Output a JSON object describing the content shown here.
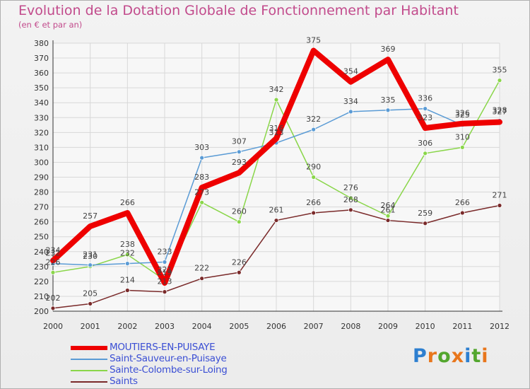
{
  "title": "Evolution de la Dotation Globale de Fonctionnement par Habitant",
  "subtitle": "(en € et par an)",
  "logo": {
    "text": "Proxiti",
    "letter_colors": [
      "#2d7fd0",
      "#e8761c",
      "#53a62e",
      "#e8761c",
      "#2d7fd0",
      "#53a62e",
      "#e8761c"
    ]
  },
  "chart_data": {
    "type": "line",
    "x": [
      "2000",
      "2001",
      "2002",
      "2003",
      "2004",
      "2005",
      "2006",
      "2007",
      "2008",
      "2009",
      "2010",
      "2011",
      "2012"
    ],
    "ylim": [
      200,
      380
    ],
    "yticks": [
      "200",
      "210",
      "220",
      "230",
      "240",
      "250",
      "260",
      "270",
      "280",
      "290",
      "300",
      "310",
      "320",
      "330",
      "340",
      "350",
      "360",
      "370",
      "380"
    ],
    "grid": true,
    "legend_position": "bottom-left",
    "series": [
      {
        "name": "Saints",
        "color": "#7a2a2a",
        "values": [
          202,
          205,
          214,
          213,
          222,
          226,
          261,
          266,
          268,
          261,
          259,
          266,
          271
        ],
        "labels": [
          "202",
          "205",
          "214",
          "213",
          "222",
          "226",
          "261",
          "266",
          "268",
          "261",
          "259",
          "266",
          "271"
        ]
      },
      {
        "name": "Sainte-Colombe-sur-Loing",
        "color": "#8ad64a",
        "values": [
          226,
          230,
          238,
          221,
          273,
          260,
          342,
          290,
          276,
          264,
          306,
          310,
          355
        ],
        "labels": [
          "226",
          "230",
          "238",
          "221",
          "273",
          "260",
          "342",
          "290",
          "276",
          "264",
          "306",
          "310",
          "355"
        ]
      },
      {
        "name": "Saint-Sauveur-en-Puisaye",
        "color": "#5a9bd5",
        "values": [
          232,
          231,
          232,
          233,
          303,
          307,
          313,
          322,
          334,
          335,
          336,
          325,
          328
        ],
        "labels": [
          "232",
          "231",
          "232",
          "233",
          "303",
          "307",
          "313",
          "322",
          "334",
          "335",
          "336",
          "325",
          "328"
        ]
      },
      {
        "name": "MOUTIERS-EN-PUISAYE",
        "color": "#ee0000",
        "values": [
          234,
          257,
          266,
          219,
          283,
          293,
          316,
          375,
          354,
          369,
          323,
          326,
          327
        ],
        "labels": [
          "234",
          "257",
          "266",
          "219",
          "283",
          "293",
          "316",
          "375",
          "354",
          "369",
          "323",
          "326",
          "327"
        ]
      }
    ],
    "legend": [
      {
        "name": "MOUTIERS-EN-PUISAYE",
        "color": "#ee0000"
      },
      {
        "name": "Saint-Sauveur-en-Puisaye",
        "color": "#5a9bd5"
      },
      {
        "name": "Sainte-Colombe-sur-Loing",
        "color": "#8ad64a"
      },
      {
        "name": "Saints",
        "color": "#7a2a2a"
      }
    ]
  }
}
